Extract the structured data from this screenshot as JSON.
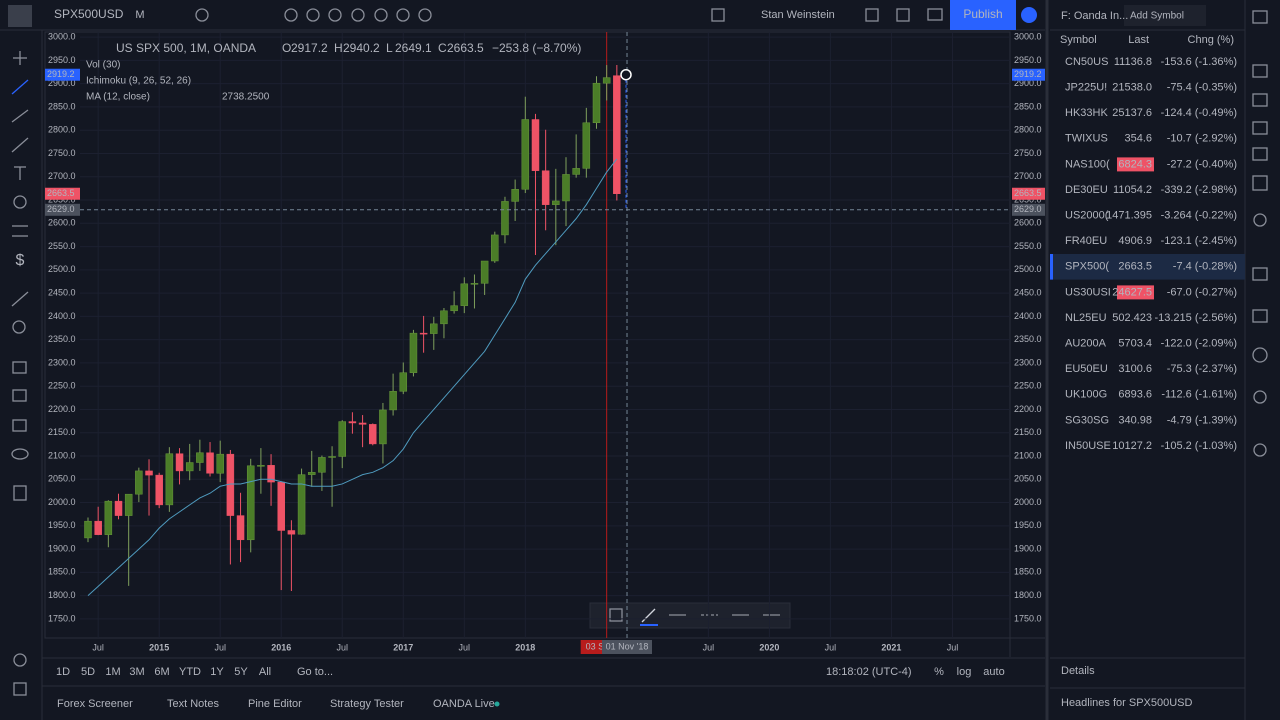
{
  "toolbar": {
    "symbol": "SPX500USD",
    "interval": "M",
    "user": "Stan Weinstein",
    "publish": "Publish"
  },
  "chart_data": {
    "type": "candlestick",
    "title": "US SPX 500, 1M, OANDA",
    "ohlc_legend": [
      {
        "label": "O",
        "value": 2917.2
      },
      {
        "label": "H",
        "value": 2940.2
      },
      {
        "label": "L",
        "value": 2649.1
      },
      {
        "label": "C",
        "value": 2663.5
      }
    ],
    "change": "−253.8 (−8.70%)",
    "indicators": [
      "Vol (30)",
      "Ichimoku (9, 26, 52, 26)",
      "MA (12, close)"
    ],
    "x": [
      "2014-06",
      "2014-07",
      "2014-08",
      "2014-09",
      "2014-10",
      "2014-11",
      "2014-12",
      "2015-01",
      "2015-02",
      "2015-03",
      "2015-04",
      "2015-05",
      "2015-06",
      "2015-07",
      "2015-08",
      "2015-09",
      "2015-10",
      "2015-11",
      "2015-12",
      "2016-01",
      "2016-02",
      "2016-03",
      "2016-04",
      "2016-05",
      "2016-06",
      "2016-07",
      "2016-08",
      "2016-09",
      "2016-10",
      "2016-11",
      "2016-12",
      "2017-01",
      "2017-02",
      "2017-03",
      "2017-04",
      "2017-05",
      "2017-06",
      "2017-07",
      "2017-08",
      "2017-09",
      "2017-10",
      "2017-11",
      "2017-12",
      "2018-01",
      "2018-02",
      "2018-03",
      "2018-04",
      "2018-05",
      "2018-06",
      "2018-07",
      "2018-08",
      "2018-09",
      "2018-10"
    ],
    "ohlc": {
      "up_color": "#4b7d28",
      "down_color": "#ef5366",
      "open": [
        1924,
        1960,
        1931,
        2003,
        1972,
        2018,
        2068,
        2059,
        1995,
        2105,
        2068,
        2086,
        2107,
        2063,
        2104,
        1972,
        1920,
        2079,
        2080,
        2044,
        1940,
        1932,
        2060,
        2065,
        2097,
        2099,
        2174,
        2171,
        2168,
        2126,
        2199,
        2239,
        2279,
        2364,
        2363,
        2384,
        2412,
        2423,
        2470,
        2471,
        2519,
        2575,
        2647,
        2673,
        2823,
        2713,
        2640,
        2648,
        2705,
        2718,
        2816,
        2901,
        2917.2
      ],
      "high": [
        1968,
        1991,
        2005,
        2019,
        2018,
        2075,
        2093,
        2064,
        2119,
        2117,
        2126,
        2135,
        2130,
        2133,
        2113,
        2021,
        2094,
        2117,
        2104,
        2044,
        1962,
        2073,
        2111,
        2101,
        2121,
        2177,
        2194,
        2188,
        2170,
        2214,
        2277,
        2301,
        2371,
        2401,
        2399,
        2418,
        2454,
        2484,
        2490,
        2519,
        2582,
        2657,
        2694,
        2872,
        2835,
        2801,
        2717,
        2742,
        2791,
        2848,
        2916,
        2940,
        2940.2
      ],
      "low": [
        1915,
        1930,
        1904,
        1964,
        1821,
        2001,
        1972,
        1988,
        1980,
        2039,
        2048,
        2068,
        2056,
        2044,
        1867,
        1872,
        1893,
        2019,
        1993,
        1812,
        1810,
        1931,
        2034,
        2025,
        1991,
        2074,
        2148,
        2119,
        2123,
        2084,
        2187,
        2233,
        2271,
        2322,
        2328,
        2353,
        2406,
        2407,
        2417,
        2446,
        2515,
        2557,
        2605,
        2665,
        2532,
        2585,
        2553,
        2594,
        2698,
        2698,
        2803,
        2864,
        2649.1
      ],
      "close": [
        1960,
        1931,
        2003,
        1972,
        2018,
        2068,
        2059,
        1995,
        2105,
        2068,
        2086,
        2107,
        2063,
        2104,
        1972,
        1920,
        2079,
        2080,
        2044,
        1940,
        1932,
        2060,
        2065,
        2097,
        2099,
        2174,
        2171,
        2168,
        2126,
        2199,
        2239,
        2279,
        2364,
        2363,
        2384,
        2412,
        2423,
        2470,
        2471,
        2519,
        2575,
        2647,
        2673,
        2823,
        2713,
        2640,
        2648,
        2705,
        2718,
        2816,
        2901,
        2913,
        2663.5
      ]
    },
    "ma": {
      "name": "MA (12, close)",
      "color": "#4f9bbf",
      "value_label": "2738.2500",
      "values": [
        1800,
        1820,
        1840,
        1860,
        1880,
        1900,
        1920,
        1945,
        1965,
        1980,
        1995,
        2010,
        2020,
        2035,
        2040,
        2040,
        2045,
        2050,
        2050,
        2045,
        2040,
        2040,
        2035,
        2035,
        2035,
        2040,
        2050,
        2060,
        2065,
        2075,
        2090,
        2115,
        2150,
        2175,
        2200,
        2225,
        2250,
        2275,
        2300,
        2325,
        2360,
        2395,
        2430,
        2480,
        2510,
        2535,
        2560,
        2585,
        2610,
        2640,
        2675,
        2710,
        2738.25
      ]
    },
    "ylim": [
      1709,
      3011
    ],
    "yticks": [
      {
        "value": 1750,
        "label": "1750.0"
      },
      {
        "value": 1800,
        "label": "1800.0"
      },
      {
        "value": 1850,
        "label": "1850.0"
      },
      {
        "value": 1900,
        "label": "1900.0"
      },
      {
        "value": 1950,
        "label": "1950.0"
      },
      {
        "value": 2000,
        "label": "2000.0"
      },
      {
        "value": 2050,
        "label": "2050.0"
      },
      {
        "value": 2100,
        "label": "2100.0"
      },
      {
        "value": 2150,
        "label": "2150.0"
      },
      {
        "value": 2200,
        "label": "2200.0"
      },
      {
        "value": 2250,
        "label": "2250.0"
      },
      {
        "value": 2300,
        "label": "2300.0"
      },
      {
        "value": 2350,
        "label": "2350.0"
      },
      {
        "value": 2400,
        "label": "2400.0"
      },
      {
        "value": 2450,
        "label": "2450.0"
      },
      {
        "value": 2500,
        "label": "2500.0"
      },
      {
        "value": 2550,
        "label": "2550.0"
      },
      {
        "value": 2600,
        "label": "2600.0"
      },
      {
        "value": 2650,
        "label": "2650.0"
      },
      {
        "value": 2700,
        "label": "2700.0"
      },
      {
        "value": 2750,
        "label": "2750.0"
      },
      {
        "value": 2800,
        "label": "2800.0"
      },
      {
        "value": 2850,
        "label": "2850.0"
      },
      {
        "value": 2900,
        "label": "2900.0"
      },
      {
        "value": 2950,
        "label": "2950.0"
      },
      {
        "value": 3000,
        "label": "3000.0"
      }
    ],
    "xticks": [
      {
        "value": "2014-07",
        "label": "Jul"
      },
      {
        "value": "2015-01",
        "label": "2015"
      },
      {
        "value": "2015-07",
        "label": "Jul"
      },
      {
        "value": "2016-01",
        "label": "2016"
      },
      {
        "value": "2016-07",
        "label": "Jul"
      },
      {
        "value": "2017-01",
        "label": "2017"
      },
      {
        "value": "2017-07",
        "label": "Jul"
      },
      {
        "value": "2018-01",
        "label": "2018"
      },
      {
        "value": "2019-07",
        "label": "Jul"
      },
      {
        "value": "2020-01",
        "label": "2020"
      },
      {
        "value": "2020-07",
        "label": "Jul"
      },
      {
        "value": "2021-01",
        "label": "2021"
      },
      {
        "value": "2021-07",
        "label": "Jul"
      }
    ],
    "grid": true,
    "price_tags": [
      {
        "value": 2919.2,
        "label": "2919.2",
        "color": "#2962ff"
      },
      {
        "value": 2663.5,
        "label": "2663.5",
        "color": "#ef5366"
      }
    ],
    "crosshair": {
      "x": "2018-11",
      "date_label": "01 Nov '18",
      "price": {
        "value": 2629,
        "label": "2629.0"
      }
    },
    "marker": {
      "x": "2018-09",
      "label": "03 S",
      "color": "#b71c1c"
    }
  },
  "range_bar": {
    "buttons": [
      "1D",
      "5D",
      "1M",
      "3M",
      "6M",
      "YTD",
      "1Y",
      "5Y",
      "All"
    ],
    "goto": "Go to...",
    "clock": "18:18:02 (UTC-4)",
    "percent": "%",
    "log": "log",
    "auto": "auto"
  },
  "bottom_tabs": [
    "Forex Screener",
    "Text Notes",
    "Pine Editor",
    "Strategy Tester",
    "OANDA Live"
  ],
  "watchlist": {
    "title": "F: Oanda In...",
    "add": "Add Symbol",
    "columns": [
      "Symbol",
      "Last",
      "Chng (%)"
    ],
    "rows": [
      [
        "CN50US",
        "11136.8",
        "-153.6 (-1.36%)"
      ],
      [
        "JP225U!",
        "21538.0",
        "-75.4 (-0.35%)"
      ],
      [
        "HK33HK",
        "25137.6",
        "-124.4 (-0.49%)"
      ],
      [
        "TWIXUS",
        "354.6",
        "-10.7 (-2.92%)"
      ],
      [
        "NAS100(",
        "6824.3",
        "-27.2 (-0.40%)"
      ],
      [
        "DE30EU",
        "11054.2",
        "-339.2 (-2.98%)"
      ],
      [
        "US2000(",
        "1471.395",
        "-3.264 (-0.22%)"
      ],
      [
        "FR40EU",
        "4906.9",
        "-123.1 (-2.45%)"
      ],
      [
        "SPX500(",
        "2663.5",
        "-7.4 (-0.28%)"
      ],
      [
        "US30USI",
        "24627.5",
        "-67.0 (-0.27%)"
      ],
      [
        "NL25EU",
        "502.423",
        "-13.215 (-2.56%)"
      ],
      [
        "AU200A",
        "5703.4",
        "-122.0 (-2.09%)"
      ],
      [
        "EU50EU",
        "3100.6",
        "-75.3 (-2.37%)"
      ],
      [
        "UK100G",
        "6893.6",
        "-112.6 (-1.61%)"
      ],
      [
        "SG30SG",
        "340.98",
        "-4.79 (-1.39%)"
      ],
      [
        "IN50USE",
        "10127.2",
        "-105.2 (-1.03%)"
      ]
    ],
    "flash_rows": [
      4,
      9
    ],
    "selected_row": 8,
    "details": "Details",
    "headlines": "Headlines for SPX500USD"
  }
}
